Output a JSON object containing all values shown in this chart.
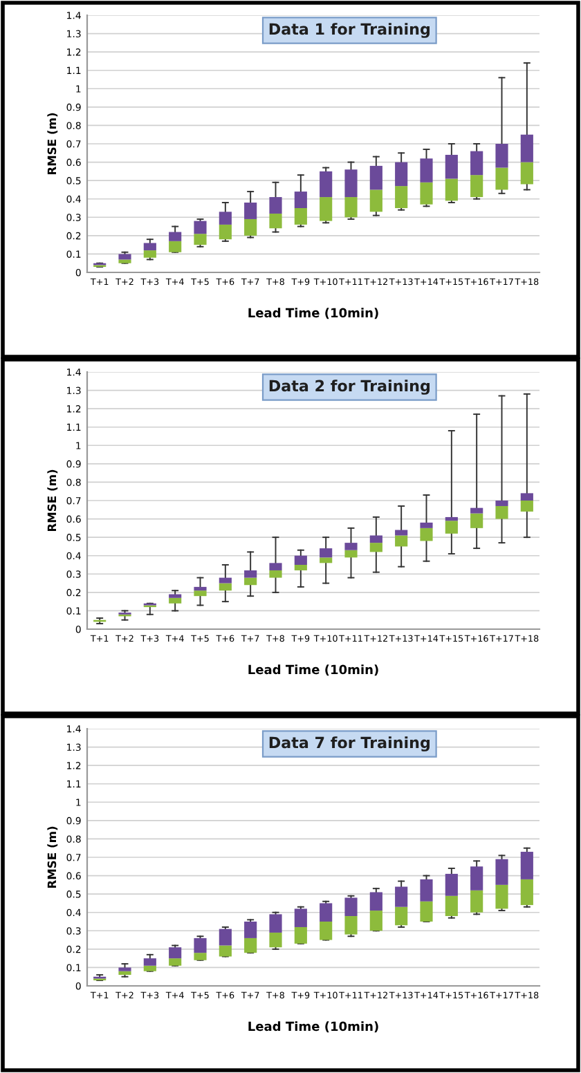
{
  "chart_data": [
    {
      "type": "box",
      "title": "Data 1 for Training",
      "xlabel": "Lead Time (10min)",
      "ylabel": "RMSE (m)",
      "categories": [
        "T+1",
        "T+2",
        "T+3",
        "T+4",
        "T+5",
        "T+6",
        "T+7",
        "T+8",
        "T+9",
        "T+10",
        "T+11",
        "T+12",
        "T+13",
        "T+14",
        "T+15",
        "T+16",
        "T+17",
        "T+18"
      ],
      "color": "#6b4a9a",
      "colors": [
        "#8dbb3c",
        "#8dbb3c",
        "#8dbb3c",
        "#8dbb3c",
        "#8dbb3c",
        "#8dbb3c",
        "#8dbb3c",
        "#8dbb3c",
        "#8dbb3c",
        "#8dbb3c",
        "#8dbb3c",
        "#8dbb3c",
        "#8dbb3c",
        "#8dbb3c",
        "#8dbb3c",
        "#8dbb3c",
        "#8dbb3c",
        "#8dbb3c"
      ],
      "ylim": [
        0,
        1.4
      ],
      "yticks": [
        0,
        0.1,
        0.2,
        0.3,
        0.4,
        0.5,
        0.6,
        0.7,
        0.8,
        0.9,
        1,
        1.1,
        1.2,
        1.3,
        1.4
      ],
      "grid": "y",
      "boxes": [
        {
          "low": 0.03,
          "q1": 0.03,
          "median": 0.04,
          "q3": 0.05,
          "high": 0.05
        },
        {
          "low": 0.05,
          "q1": 0.05,
          "median": 0.07,
          "q3": 0.1,
          "high": 0.11
        },
        {
          "low": 0.07,
          "q1": 0.08,
          "median": 0.12,
          "q3": 0.16,
          "high": 0.18
        },
        {
          "low": 0.11,
          "q1": 0.11,
          "median": 0.17,
          "q3": 0.22,
          "high": 0.25
        },
        {
          "low": 0.14,
          "q1": 0.15,
          "median": 0.21,
          "q3": 0.28,
          "high": 0.29
        },
        {
          "low": 0.17,
          "q1": 0.18,
          "median": 0.26,
          "q3": 0.33,
          "high": 0.38
        },
        {
          "low": 0.19,
          "q1": 0.2,
          "median": 0.29,
          "q3": 0.38,
          "high": 0.44
        },
        {
          "low": 0.22,
          "q1": 0.24,
          "median": 0.32,
          "q3": 0.41,
          "high": 0.49
        },
        {
          "low": 0.25,
          "q1": 0.26,
          "median": 0.35,
          "q3": 0.44,
          "high": 0.53
        },
        {
          "low": 0.27,
          "q1": 0.28,
          "median": 0.41,
          "q3": 0.55,
          "high": 0.57
        },
        {
          "low": 0.29,
          "q1": 0.3,
          "median": 0.41,
          "q3": 0.56,
          "high": 0.6
        },
        {
          "low": 0.31,
          "q1": 0.33,
          "median": 0.45,
          "q3": 0.58,
          "high": 0.63
        },
        {
          "low": 0.34,
          "q1": 0.35,
          "median": 0.47,
          "q3": 0.6,
          "high": 0.65
        },
        {
          "low": 0.36,
          "q1": 0.37,
          "median": 0.49,
          "q3": 0.62,
          "high": 0.67
        },
        {
          "low": 0.38,
          "q1": 0.39,
          "median": 0.51,
          "q3": 0.64,
          "high": 0.7
        },
        {
          "low": 0.4,
          "q1": 0.41,
          "median": 0.53,
          "q3": 0.66,
          "high": 0.7
        },
        {
          "low": 0.43,
          "q1": 0.45,
          "median": 0.57,
          "q3": 0.7,
          "high": 1.06
        },
        {
          "low": 0.45,
          "q1": 0.48,
          "median": 0.6,
          "q3": 0.75,
          "high": 1.14
        }
      ]
    },
    {
      "type": "box",
      "title": "Data 2 for Training",
      "xlabel": "Lead Time (10min)",
      "ylabel": "RMSE (m)",
      "categories": [
        "T+1",
        "T+2",
        "T+3",
        "T+4",
        "T+5",
        "T+6",
        "T+7",
        "T+8",
        "T+9",
        "T+10",
        "T+11",
        "T+12",
        "T+13",
        "T+14",
        "T+15",
        "T+16",
        "T+17",
        "T+18"
      ],
      "color": "#6b4a9a",
      "colors": [
        "#8dbb3c",
        "#8dbb3c",
        "#8dbb3c",
        "#8dbb3c",
        "#8dbb3c",
        "#8dbb3c",
        "#8dbb3c",
        "#8dbb3c",
        "#8dbb3c",
        "#8dbb3c",
        "#8dbb3c",
        "#8dbb3c",
        "#8dbb3c",
        "#8dbb3c",
        "#8dbb3c",
        "#8dbb3c",
        "#8dbb3c",
        "#8dbb3c"
      ],
      "ylim": [
        0,
        1.4
      ],
      "yticks": [
        0,
        0.1,
        0.2,
        0.3,
        0.4,
        0.5,
        0.6,
        0.7,
        0.8,
        0.9,
        1,
        1.1,
        1.2,
        1.3,
        1.4
      ],
      "grid": "y",
      "boxes": [
        {
          "low": 0.03,
          "q1": 0.04,
          "median": 0.05,
          "q3": 0.05,
          "high": 0.06
        },
        {
          "low": 0.05,
          "q1": 0.07,
          "median": 0.08,
          "q3": 0.09,
          "high": 0.1
        },
        {
          "low": 0.08,
          "q1": 0.12,
          "median": 0.13,
          "q3": 0.14,
          "high": 0.14
        },
        {
          "low": 0.1,
          "q1": 0.14,
          "median": 0.17,
          "q3": 0.19,
          "high": 0.21
        },
        {
          "low": 0.13,
          "q1": 0.18,
          "median": 0.21,
          "q3": 0.23,
          "high": 0.28
        },
        {
          "low": 0.15,
          "q1": 0.21,
          "median": 0.25,
          "q3": 0.28,
          "high": 0.35
        },
        {
          "low": 0.18,
          "q1": 0.24,
          "median": 0.28,
          "q3": 0.32,
          "high": 0.42
        },
        {
          "low": 0.2,
          "q1": 0.28,
          "median": 0.32,
          "q3": 0.36,
          "high": 0.5
        },
        {
          "low": 0.23,
          "q1": 0.32,
          "median": 0.35,
          "q3": 0.4,
          "high": 0.43
        },
        {
          "low": 0.25,
          "q1": 0.36,
          "median": 0.39,
          "q3": 0.44,
          "high": 0.5
        },
        {
          "low": 0.28,
          "q1": 0.39,
          "median": 0.43,
          "q3": 0.47,
          "high": 0.55
        },
        {
          "low": 0.31,
          "q1": 0.42,
          "median": 0.47,
          "q3": 0.51,
          "high": 0.61
        },
        {
          "low": 0.34,
          "q1": 0.45,
          "median": 0.51,
          "q3": 0.54,
          "high": 0.67
        },
        {
          "low": 0.37,
          "q1": 0.48,
          "median": 0.55,
          "q3": 0.58,
          "high": 0.73
        },
        {
          "low": 0.41,
          "q1": 0.52,
          "median": 0.59,
          "q3": 0.61,
          "high": 1.08
        },
        {
          "low": 0.44,
          "q1": 0.55,
          "median": 0.63,
          "q3": 0.66,
          "high": 1.17
        },
        {
          "low": 0.47,
          "q1": 0.6,
          "median": 0.67,
          "q3": 0.7,
          "high": 1.27
        },
        {
          "low": 0.5,
          "q1": 0.64,
          "median": 0.7,
          "q3": 0.74,
          "high": 1.28
        }
      ]
    },
    {
      "type": "box",
      "title": "Data 7 for Training",
      "xlabel": "Lead Time (10min)",
      "ylabel": "RMSE (m)",
      "categories": [
        "T+1",
        "T+2",
        "T+3",
        "T+4",
        "T+5",
        "T+6",
        "T+7",
        "T+8",
        "T+9",
        "T+10",
        "T+11",
        "T+12",
        "T+13",
        "T+14",
        "T+15",
        "T+16",
        "T+17",
        "T+18"
      ],
      "color": "#6b4a9a",
      "colors": [
        "#8dbb3c",
        "#8dbb3c",
        "#8dbb3c",
        "#8dbb3c",
        "#8dbb3c",
        "#8dbb3c",
        "#8dbb3c",
        "#8dbb3c",
        "#8dbb3c",
        "#8dbb3c",
        "#8dbb3c",
        "#8dbb3c",
        "#8dbb3c",
        "#8dbb3c",
        "#8dbb3c",
        "#8dbb3c",
        "#8dbb3c",
        "#8dbb3c"
      ],
      "ylim": [
        0,
        1.4
      ],
      "yticks": [
        0,
        0.1,
        0.2,
        0.3,
        0.4,
        0.5,
        0.6,
        0.7,
        0.8,
        0.9,
        1,
        1.1,
        1.2,
        1.3,
        1.4
      ],
      "grid": "y",
      "boxes": [
        {
          "low": 0.03,
          "q1": 0.03,
          "median": 0.04,
          "q3": 0.05,
          "high": 0.06
        },
        {
          "low": 0.05,
          "q1": 0.06,
          "median": 0.08,
          "q3": 0.1,
          "high": 0.12
        },
        {
          "low": 0.08,
          "q1": 0.08,
          "median": 0.11,
          "q3": 0.15,
          "high": 0.17
        },
        {
          "low": 0.11,
          "q1": 0.11,
          "median": 0.15,
          "q3": 0.21,
          "high": 0.22
        },
        {
          "low": 0.14,
          "q1": 0.14,
          "median": 0.18,
          "q3": 0.26,
          "high": 0.27
        },
        {
          "low": 0.16,
          "q1": 0.16,
          "median": 0.22,
          "q3": 0.31,
          "high": 0.32
        },
        {
          "low": 0.18,
          "q1": 0.18,
          "median": 0.26,
          "q3": 0.35,
          "high": 0.36
        },
        {
          "low": 0.2,
          "q1": 0.21,
          "median": 0.29,
          "q3": 0.39,
          "high": 0.4
        },
        {
          "low": 0.23,
          "q1": 0.23,
          "median": 0.32,
          "q3": 0.42,
          "high": 0.43
        },
        {
          "low": 0.25,
          "q1": 0.25,
          "median": 0.35,
          "q3": 0.45,
          "high": 0.46
        },
        {
          "low": 0.27,
          "q1": 0.28,
          "median": 0.38,
          "q3": 0.48,
          "high": 0.49
        },
        {
          "low": 0.3,
          "q1": 0.3,
          "median": 0.41,
          "q3": 0.51,
          "high": 0.53
        },
        {
          "low": 0.32,
          "q1": 0.33,
          "median": 0.43,
          "q3": 0.54,
          "high": 0.57
        },
        {
          "low": 0.35,
          "q1": 0.35,
          "median": 0.46,
          "q3": 0.58,
          "high": 0.6
        },
        {
          "low": 0.37,
          "q1": 0.38,
          "median": 0.49,
          "q3": 0.61,
          "high": 0.64
        },
        {
          "low": 0.39,
          "q1": 0.4,
          "median": 0.52,
          "q3": 0.65,
          "high": 0.68
        },
        {
          "low": 0.41,
          "q1": 0.42,
          "median": 0.55,
          "q3": 0.69,
          "high": 0.71
        },
        {
          "low": 0.43,
          "q1": 0.44,
          "median": 0.58,
          "q3": 0.73,
          "high": 0.75
        }
      ]
    }
  ]
}
